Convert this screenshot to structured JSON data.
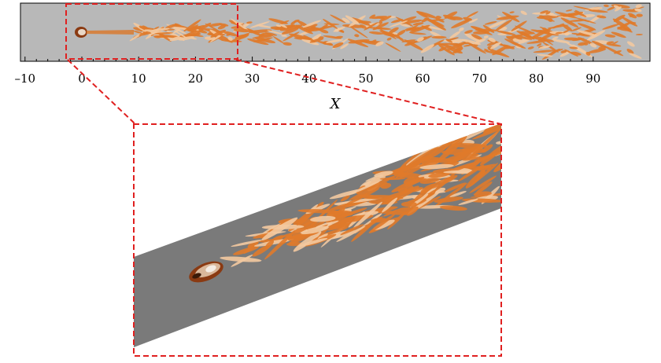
{
  "figure": {
    "axis": {
      "label": "X",
      "xlim": [
        -10,
        90
      ],
      "ticks": [
        -10,
        0,
        10,
        20,
        30,
        40,
        50,
        60,
        70,
        80,
        90
      ],
      "tick_labels": [
        "–10",
        "0",
        "10",
        "20",
        "30",
        "40",
        "50",
        "60",
        "70",
        "80",
        "90"
      ],
      "minor_tick_step": 2
    },
    "zoom_region": {
      "x_range": [
        -2.5,
        24.5
      ]
    },
    "colors": {
      "background": "#b8b8b8",
      "inset_background": "#7a7a7a",
      "vortex": "#e07a2a",
      "vortex_light": "#f3c9a0",
      "highlight": "#e02020"
    }
  }
}
